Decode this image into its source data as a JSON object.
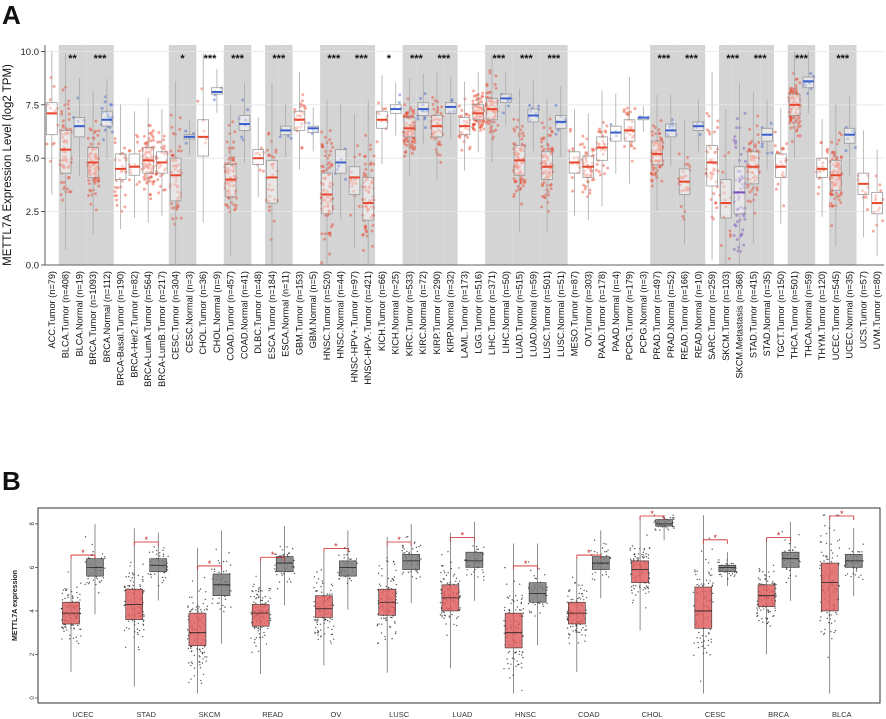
{
  "figure": {
    "panel_a_letter": "A",
    "panel_b_letter": "B"
  },
  "chart_data": [
    {
      "type": "box",
      "panel": "A",
      "ylabel": "METTL7A Expression Level (log2 TPM)",
      "ylim": [
        0,
        10.3
      ],
      "yticks": [
        "0.0",
        "2.5",
        "5.0",
        "7.5",
        "10.0"
      ],
      "colors": {
        "tumor": "#e8452c",
        "normal": "#3a5fcd",
        "metastasis": "#7b4fbf",
        "shade": "#d4d4d4",
        "grid": "#e6e6e6"
      },
      "groups": [
        {
          "label": "ACC.Tumor (n=79)",
          "kind": "tumor",
          "q1": 6.1,
          "median": 7.1,
          "q3": 7.6,
          "shade": false,
          "sig": ""
        },
        {
          "label": "BLCA.Tumor (n=408)",
          "kind": "tumor",
          "q1": 4.3,
          "median": 5.4,
          "q3": 6.3,
          "shade": true,
          "sig": ""
        },
        {
          "label": "BLCA.Normal (n=19)",
          "kind": "normal",
          "q1": 6.0,
          "median": 6.5,
          "q3": 6.9,
          "shade": true,
          "sig": "**"
        },
        {
          "label": "BRCA.Tumor (n=1093)",
          "kind": "tumor",
          "q1": 4.1,
          "median": 4.8,
          "q3": 5.5,
          "shade": true,
          "sig": ""
        },
        {
          "label": "BRCA.Normal (n=112)",
          "kind": "normal",
          "q1": 6.5,
          "median": 6.8,
          "q3": 7.2,
          "shade": true,
          "sig": "***"
        },
        {
          "label": "BRCA-Basal.Tumor (n=190)",
          "kind": "tumor",
          "q1": 4.0,
          "median": 4.5,
          "q3": 5.2,
          "shade": false,
          "sig": ""
        },
        {
          "label": "BRCA-Her2.Tumor (n=82)",
          "kind": "tumor",
          "q1": 4.2,
          "median": 4.6,
          "q3": 5.2,
          "shade": false,
          "sig": ""
        },
        {
          "label": "BRCA-LumA.Tumor (n=564)",
          "kind": "tumor",
          "q1": 4.3,
          "median": 4.9,
          "q3": 5.5,
          "shade": false,
          "sig": ""
        },
        {
          "label": "BRCA-LumB.Tumor (n=217)",
          "kind": "tumor",
          "q1": 4.3,
          "median": 4.8,
          "q3": 5.3,
          "shade": false,
          "sig": ""
        },
        {
          "label": "CESC.Tumor (n=304)",
          "kind": "tumor",
          "q1": 3.0,
          "median": 4.2,
          "q3": 5.0,
          "shade": true,
          "sig": ""
        },
        {
          "label": "CESC.Normal (n=3)",
          "kind": "normal",
          "q1": 5.9,
          "median": 6.0,
          "q3": 6.1,
          "shade": true,
          "sig": "*"
        },
        {
          "label": "CHOL.Tumor (n=36)",
          "kind": "tumor",
          "q1": 5.1,
          "median": 6.0,
          "q3": 6.8,
          "shade": false,
          "sig": ""
        },
        {
          "label": "CHOL.Normal (n=9)",
          "kind": "normal",
          "q1": 8.0,
          "median": 8.1,
          "q3": 8.3,
          "shade": false,
          "sig": "***"
        },
        {
          "label": "COAD.Tumor (n=457)",
          "kind": "tumor",
          "q1": 3.2,
          "median": 4.0,
          "q3": 4.7,
          "shade": true,
          "sig": ""
        },
        {
          "label": "COAD.Normal (n=41)",
          "kind": "normal",
          "q1": 6.3,
          "median": 6.6,
          "q3": 7.0,
          "shade": true,
          "sig": "***"
        },
        {
          "label": "DLBC.Tumor (n=48)",
          "kind": "tumor",
          "q1": 4.7,
          "median": 5.0,
          "q3": 5.4,
          "shade": false,
          "sig": ""
        },
        {
          "label": "ESCA.Tumor (n=184)",
          "kind": "tumor",
          "q1": 2.9,
          "median": 4.1,
          "q3": 4.9,
          "shade": true,
          "sig": ""
        },
        {
          "label": "ESCA.Normal (n=11)",
          "kind": "normal",
          "q1": 6.1,
          "median": 6.3,
          "q3": 6.5,
          "shade": true,
          "sig": "***"
        },
        {
          "label": "GBM.Tumor (n=153)",
          "kind": "tumor",
          "q1": 6.3,
          "median": 6.8,
          "q3": 7.2,
          "shade": false,
          "sig": ""
        },
        {
          "label": "GBM.Normal (n=5)",
          "kind": "normal",
          "q1": 6.2,
          "median": 6.4,
          "q3": 6.5,
          "shade": false,
          "sig": ""
        },
        {
          "label": "HNSC.Tumor (n=520)",
          "kind": "tumor",
          "q1": 2.4,
          "median": 3.3,
          "q3": 4.3,
          "shade": true,
          "sig": ""
        },
        {
          "label": "HNSC.Normal (n=44)",
          "kind": "normal",
          "q1": 4.3,
          "median": 4.8,
          "q3": 5.4,
          "shade": true,
          "sig": "***"
        },
        {
          "label": "HNSC-HPV+.Tumor (n=97)",
          "kind": "tumor",
          "q1": 3.3,
          "median": 4.1,
          "q3": 4.6,
          "shade": true,
          "sig": ""
        },
        {
          "label": "HNSC-HPV-.Tumor (n=421)",
          "kind": "tumor",
          "q1": 2.1,
          "median": 2.9,
          "q3": 4.1,
          "shade": true,
          "sig": "***"
        },
        {
          "label": "KICH.Tumor (n=66)",
          "kind": "tumor",
          "q1": 6.4,
          "median": 6.8,
          "q3": 7.2,
          "shade": false,
          "sig": ""
        },
        {
          "label": "KICH.Normal (n=25)",
          "kind": "normal",
          "q1": 7.1,
          "median": 7.3,
          "q3": 7.5,
          "shade": false,
          "sig": "*"
        },
        {
          "label": "KIRC.Tumor (n=533)",
          "kind": "tumor",
          "q1": 6.0,
          "median": 6.4,
          "q3": 6.9,
          "shade": true,
          "sig": ""
        },
        {
          "label": "KIRC.Normal (n=72)",
          "kind": "normal",
          "q1": 7.0,
          "median": 7.3,
          "q3": 7.6,
          "shade": true,
          "sig": "***"
        },
        {
          "label": "KIRP.Tumor (n=290)",
          "kind": "tumor",
          "q1": 6.0,
          "median": 6.5,
          "q3": 7.0,
          "shade": true,
          "sig": ""
        },
        {
          "label": "KIRP.Normal (n=32)",
          "kind": "normal",
          "q1": 7.1,
          "median": 7.4,
          "q3": 7.6,
          "shade": true,
          "sig": "***"
        },
        {
          "label": "LAML.Tumor (n=173)",
          "kind": "tumor",
          "q1": 6.1,
          "median": 6.5,
          "q3": 6.9,
          "shade": false,
          "sig": ""
        },
        {
          "label": "LGG.Tumor (n=516)",
          "kind": "tumor",
          "q1": 6.8,
          "median": 7.1,
          "q3": 7.5,
          "shade": false,
          "sig": ""
        },
        {
          "label": "LIHC.Tumor (n=371)",
          "kind": "tumor",
          "q1": 6.8,
          "median": 7.3,
          "q3": 7.8,
          "shade": true,
          "sig": ""
        },
        {
          "label": "LIHC.Normal (n=50)",
          "kind": "normal",
          "q1": 7.6,
          "median": 7.8,
          "q3": 8.0,
          "shade": true,
          "sig": "***"
        },
        {
          "label": "LUAD.Tumor (n=515)",
          "kind": "tumor",
          "q1": 4.2,
          "median": 4.9,
          "q3": 5.6,
          "shade": true,
          "sig": ""
        },
        {
          "label": "LUAD.Normal (n=59)",
          "kind": "normal",
          "q1": 6.7,
          "median": 7.0,
          "q3": 7.3,
          "shade": true,
          "sig": "***"
        },
        {
          "label": "LUSC.Tumor (n=501)",
          "kind": "tumor",
          "q1": 4.0,
          "median": 4.6,
          "q3": 5.3,
          "shade": true,
          "sig": ""
        },
        {
          "label": "LUSC.Normal (n=51)",
          "kind": "normal",
          "q1": 6.4,
          "median": 6.7,
          "q3": 7.0,
          "shade": true,
          "sig": "***"
        },
        {
          "label": "MESO.Tumor (n=87)",
          "kind": "tumor",
          "q1": 4.3,
          "median": 4.8,
          "q3": 5.3,
          "shade": false,
          "sig": ""
        },
        {
          "label": "OV.Tumor (n=303)",
          "kind": "tumor",
          "q1": 4.1,
          "median": 4.6,
          "q3": 5.1,
          "shade": false,
          "sig": ""
        },
        {
          "label": "PAAD.Tumor (n=178)",
          "kind": "tumor",
          "q1": 4.9,
          "median": 5.5,
          "q3": 6.0,
          "shade": false,
          "sig": ""
        },
        {
          "label": "PAAD.Normal (n=4)",
          "kind": "normal",
          "q1": 5.8,
          "median": 6.2,
          "q3": 6.5,
          "shade": false,
          "sig": ""
        },
        {
          "label": "PCPG.Tumor (n=179)",
          "kind": "tumor",
          "q1": 5.8,
          "median": 6.3,
          "q3": 6.8,
          "shade": false,
          "sig": ""
        },
        {
          "label": "PCPG.Normal (n=3)",
          "kind": "normal",
          "q1": 6.8,
          "median": 6.9,
          "q3": 6.9,
          "shade": false,
          "sig": ""
        },
        {
          "label": "PRAD.Tumor (n=497)",
          "kind": "tumor",
          "q1": 4.7,
          "median": 5.2,
          "q3": 5.8,
          "shade": true,
          "sig": ""
        },
        {
          "label": "PRAD.Normal (n=52)",
          "kind": "normal",
          "q1": 6.0,
          "median": 6.3,
          "q3": 6.6,
          "shade": true,
          "sig": "***"
        },
        {
          "label": "READ.Tumor (n=166)",
          "kind": "tumor",
          "q1": 3.3,
          "median": 3.9,
          "q3": 4.5,
          "shade": true,
          "sig": ""
        },
        {
          "label": "READ.Normal (n=10)",
          "kind": "normal",
          "q1": 6.3,
          "median": 6.5,
          "q3": 6.7,
          "shade": true,
          "sig": "***"
        },
        {
          "label": "SARC.Tumor (n=259)",
          "kind": "tumor",
          "q1": 3.7,
          "median": 4.8,
          "q3": 5.6,
          "shade": false,
          "sig": ""
        },
        {
          "label": "SKCM.Tumor (n=103)",
          "kind": "tumor",
          "q1": 2.2,
          "median": 2.9,
          "q3": 4.0,
          "shade": true,
          "sig": ""
        },
        {
          "label": "SKCM.Metastasis (n=368)",
          "kind": "metastasis",
          "q1": 2.4,
          "median": 3.4,
          "q3": 4.6,
          "shade": true,
          "sig": "***"
        },
        {
          "label": "STAD.Tumor (n=415)",
          "kind": "tumor",
          "q1": 3.8,
          "median": 4.6,
          "q3": 5.3,
          "shade": true,
          "sig": ""
        },
        {
          "label": "STAD.Normal (n=35)",
          "kind": "normal",
          "q1": 5.8,
          "median": 6.1,
          "q3": 6.4,
          "shade": true,
          "sig": "***"
        },
        {
          "label": "TGCT.Tumor (n=150)",
          "kind": "tumor",
          "q1": 4.1,
          "median": 4.6,
          "q3": 5.2,
          "shade": false,
          "sig": ""
        },
        {
          "label": "THCA.Tumor (n=501)",
          "kind": "tumor",
          "q1": 7.0,
          "median": 7.5,
          "q3": 8.0,
          "shade": true,
          "sig": ""
        },
        {
          "label": "THCA.Normal (n=59)",
          "kind": "normal",
          "q1": 8.3,
          "median": 8.6,
          "q3": 8.8,
          "shade": true,
          "sig": "***"
        },
        {
          "label": "THYM.Tumor (n=120)",
          "kind": "tumor",
          "q1": 4.1,
          "median": 4.5,
          "q3": 5.0,
          "shade": false,
          "sig": ""
        },
        {
          "label": "UCEC.Tumor (n=545)",
          "kind": "tumor",
          "q1": 3.5,
          "median": 4.2,
          "q3": 4.9,
          "shade": true,
          "sig": ""
        },
        {
          "label": "UCEC.Normal (n=35)",
          "kind": "normal",
          "q1": 5.7,
          "median": 6.1,
          "q3": 6.4,
          "shade": true,
          "sig": "***"
        },
        {
          "label": "UCS.Tumor (n=57)",
          "kind": "tumor",
          "q1": 3.3,
          "median": 3.8,
          "q3": 4.3,
          "shade": false,
          "sig": ""
        },
        {
          "label": "UVM.Tumor (n=80)",
          "kind": "tumor",
          "q1": 2.4,
          "median": 2.9,
          "q3": 3.4,
          "shade": false,
          "sig": ""
        }
      ]
    },
    {
      "type": "box",
      "panel": "B",
      "ylabel": "METTL7A expression",
      "ylim": [
        0,
        8.5
      ],
      "yticks": [
        "0",
        "2",
        "4",
        "6",
        "8"
      ],
      "significance_marker": "*",
      "colors": {
        "tumor": "#e06060",
        "normal": "#7a7a7a"
      },
      "groups": [
        {
          "category": "UCEC",
          "tumor": {
            "q1": 3.4,
            "median": 3.9,
            "q3": 4.4
          },
          "normal": {
            "q1": 5.6,
            "median": 6.0,
            "q3": 6.4
          }
        },
        {
          "category": "STAD",
          "tumor": {
            "q1": 3.6,
            "median": 4.3,
            "q3": 5.0
          },
          "normal": {
            "q1": 5.8,
            "median": 6.1,
            "q3": 6.4
          }
        },
        {
          "category": "SKCM",
          "tumor": {
            "q1": 2.4,
            "median": 3.0,
            "q3": 3.9
          },
          "normal": {
            "q1": 4.7,
            "median": 5.2,
            "q3": 5.7
          }
        },
        {
          "category": "READ",
          "tumor": {
            "q1": 3.3,
            "median": 3.9,
            "q3": 4.3
          },
          "normal": {
            "q1": 5.8,
            "median": 6.2,
            "q3": 6.5
          }
        },
        {
          "category": "OV",
          "tumor": {
            "q1": 3.7,
            "median": 4.1,
            "q3": 4.7
          },
          "normal": {
            "q1": 5.6,
            "median": 6.0,
            "q3": 6.3
          }
        },
        {
          "category": "LUSC",
          "tumor": {
            "q1": 3.8,
            "median": 4.4,
            "q3": 5.0
          },
          "normal": {
            "q1": 5.9,
            "median": 6.3,
            "q3": 6.6
          }
        },
        {
          "category": "LUAD",
          "tumor": {
            "q1": 4.0,
            "median": 4.6,
            "q3": 5.2
          },
          "normal": {
            "q1": 6.0,
            "median": 6.3,
            "q3": 6.7
          }
        },
        {
          "category": "HNSC",
          "tumor": {
            "q1": 2.3,
            "median": 3.0,
            "q3": 3.9
          },
          "normal": {
            "q1": 4.4,
            "median": 4.8,
            "q3": 5.3
          }
        },
        {
          "category": "COAD",
          "tumor": {
            "q1": 3.4,
            "median": 3.9,
            "q3": 4.4
          },
          "normal": {
            "q1": 5.9,
            "median": 6.2,
            "q3": 6.5
          }
        },
        {
          "category": "CHOL",
          "tumor": {
            "q1": 5.3,
            "median": 5.9,
            "q3": 6.3
          },
          "normal": {
            "q1": 7.9,
            "median": 8.0,
            "q3": 8.2
          }
        },
        {
          "category": "CESC",
          "tumor": {
            "q1": 3.2,
            "median": 4.0,
            "q3": 5.1
          },
          "normal": {
            "q1": 5.8,
            "median": 6.0,
            "q3": 6.1
          }
        },
        {
          "category": "BRCA",
          "tumor": {
            "q1": 4.2,
            "median": 4.7,
            "q3": 5.2
          },
          "normal": {
            "q1": 6.0,
            "median": 6.4,
            "q3": 6.7
          }
        },
        {
          "category": "BLCA",
          "tumor": {
            "q1": 4.0,
            "median": 5.3,
            "q3": 6.2
          },
          "normal": {
            "q1": 6.0,
            "median": 6.3,
            "q3": 6.6
          }
        }
      ]
    }
  ]
}
